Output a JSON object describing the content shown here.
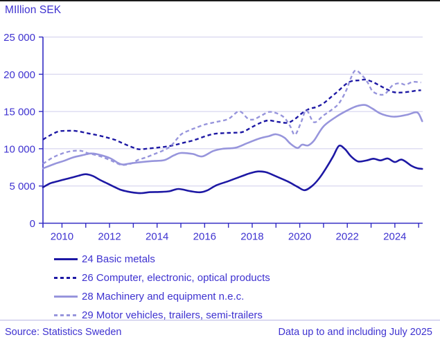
{
  "title": "MIllion SEK",
  "footer": {
    "source": "Source: Statistics Sweden",
    "note": "Data up to and including July 2025"
  },
  "colors": {
    "dark_line": "#1d18a4",
    "light_line": "#9795dc",
    "grid": "#cfcdec",
    "axis": "#322bc4",
    "text": "#3e32d0",
    "top_border": "#1a1a1a",
    "separator": "#b9b7e4"
  },
  "chart_data": {
    "type": "line",
    "title": "MIllion SEK",
    "ylabel": "",
    "xlabel": "",
    "grid": "horizontal",
    "legend_position": "bottom-left",
    "x_domain": [
      2009.2,
      2025.17
    ],
    "ylim": [
      0,
      25000
    ],
    "y_ticks": [
      {
        "v": 0,
        "label": "0"
      },
      {
        "v": 5000,
        "label": "5 000"
      },
      {
        "v": 10000,
        "label": "10 000"
      },
      {
        "v": 15000,
        "label": "15 000"
      },
      {
        "v": 20000,
        "label": "20 000"
      },
      {
        "v": 25000,
        "label": "25 000"
      }
    ],
    "x_ticks": [
      2010,
      2011,
      2012,
      2013,
      2014,
      2015,
      2016,
      2017,
      2018,
      2019,
      2020,
      2021,
      2022,
      2023,
      2024,
      2025
    ],
    "x_tick_labels": [
      {
        "v": 2010,
        "label": "2010"
      },
      {
        "v": 2012,
        "label": "2012"
      },
      {
        "v": 2014,
        "label": "2014"
      },
      {
        "v": 2016,
        "label": "2016"
      },
      {
        "v": 2018,
        "label": "2018"
      },
      {
        "v": 2020,
        "label": "2020"
      },
      {
        "v": 2022,
        "label": "2022"
      },
      {
        "v": 2024,
        "label": "2024"
      }
    ],
    "series": [
      {
        "name": "24 Basic metals",
        "color": "dark",
        "dash": "solid",
        "points": [
          [
            2009.2,
            4830
          ],
          [
            2009.5,
            5350
          ],
          [
            2009.8,
            5620
          ],
          [
            2010.0,
            5800
          ],
          [
            2010.4,
            6120
          ],
          [
            2010.7,
            6380
          ],
          [
            2011.0,
            6580
          ],
          [
            2011.3,
            6340
          ],
          [
            2011.6,
            5810
          ],
          [
            2011.9,
            5350
          ],
          [
            2012.15,
            4950
          ],
          [
            2012.45,
            4510
          ],
          [
            2012.75,
            4260
          ],
          [
            2013.05,
            4100
          ],
          [
            2013.35,
            4040
          ],
          [
            2013.7,
            4170
          ],
          [
            2014.1,
            4200
          ],
          [
            2014.5,
            4280
          ],
          [
            2014.9,
            4600
          ],
          [
            2015.4,
            4300
          ],
          [
            2015.8,
            4150
          ],
          [
            2016.1,
            4400
          ],
          [
            2016.5,
            5100
          ],
          [
            2017.0,
            5650
          ],
          [
            2017.5,
            6250
          ],
          [
            2017.9,
            6700
          ],
          [
            2018.25,
            6950
          ],
          [
            2018.6,
            6830
          ],
          [
            2019.0,
            6300
          ],
          [
            2019.5,
            5600
          ],
          [
            2019.9,
            4900
          ],
          [
            2020.2,
            4430
          ],
          [
            2020.5,
            4950
          ],
          [
            2020.8,
            5950
          ],
          [
            2021.1,
            7350
          ],
          [
            2021.4,
            8950
          ],
          [
            2021.65,
            10390
          ],
          [
            2021.9,
            9950
          ],
          [
            2022.15,
            9000
          ],
          [
            2022.45,
            8300
          ],
          [
            2022.8,
            8420
          ],
          [
            2023.1,
            8660
          ],
          [
            2023.4,
            8440
          ],
          [
            2023.7,
            8690
          ],
          [
            2024.0,
            8220
          ],
          [
            2024.3,
            8530
          ],
          [
            2024.7,
            7700
          ],
          [
            2024.95,
            7380
          ],
          [
            2025.15,
            7300
          ]
        ]
      },
      {
        "name": "26 Computer, electronic, optical products",
        "color": "dark",
        "dash": "dashed",
        "points": [
          [
            2009.2,
            11230
          ],
          [
            2009.5,
            11800
          ],
          [
            2009.85,
            12320
          ],
          [
            2010.2,
            12410
          ],
          [
            2010.6,
            12380
          ],
          [
            2011.05,
            12100
          ],
          [
            2011.45,
            11850
          ],
          [
            2011.85,
            11540
          ],
          [
            2012.25,
            11170
          ],
          [
            2012.6,
            10670
          ],
          [
            2013.0,
            10150
          ],
          [
            2013.25,
            9930
          ],
          [
            2013.6,
            10020
          ],
          [
            2014.0,
            10150
          ],
          [
            2014.4,
            10300
          ],
          [
            2014.8,
            10550
          ],
          [
            2015.1,
            10800
          ],
          [
            2015.5,
            11100
          ],
          [
            2016.0,
            11650
          ],
          [
            2016.4,
            12000
          ],
          [
            2016.8,
            12100
          ],
          [
            2017.2,
            12150
          ],
          [
            2017.6,
            12250
          ],
          [
            2018.0,
            12930
          ],
          [
            2018.4,
            13550
          ],
          [
            2018.7,
            13800
          ],
          [
            2019.1,
            13600
          ],
          [
            2019.5,
            13490
          ],
          [
            2019.8,
            14000
          ],
          [
            2020.1,
            14790
          ],
          [
            2020.4,
            15350
          ],
          [
            2020.7,
            15600
          ],
          [
            2021.0,
            16100
          ],
          [
            2021.3,
            16900
          ],
          [
            2021.6,
            17700
          ],
          [
            2021.95,
            18700
          ],
          [
            2022.2,
            19100
          ],
          [
            2022.5,
            19180
          ],
          [
            2022.75,
            19280
          ],
          [
            2023.05,
            19000
          ],
          [
            2023.35,
            18500
          ],
          [
            2023.65,
            18000
          ],
          [
            2023.95,
            17600
          ],
          [
            2024.25,
            17550
          ],
          [
            2024.6,
            17650
          ],
          [
            2024.9,
            17800
          ],
          [
            2025.1,
            17850
          ]
        ]
      },
      {
        "name": "28 Machinery and equipment n.e.c.",
        "color": "light",
        "dash": "solid",
        "points": [
          [
            2009.2,
            7360
          ],
          [
            2009.7,
            7980
          ],
          [
            2010.1,
            8390
          ],
          [
            2010.45,
            8820
          ],
          [
            2010.9,
            9160
          ],
          [
            2011.25,
            9370
          ],
          [
            2011.65,
            9130
          ],
          [
            2012.05,
            8690
          ],
          [
            2012.35,
            8100
          ],
          [
            2012.55,
            7880
          ],
          [
            2012.9,
            8050
          ],
          [
            2013.3,
            8200
          ],
          [
            2013.8,
            8350
          ],
          [
            2014.3,
            8470
          ],
          [
            2014.7,
            9100
          ],
          [
            2015.0,
            9430
          ],
          [
            2015.5,
            9300
          ],
          [
            2015.9,
            8970
          ],
          [
            2016.35,
            9680
          ],
          [
            2016.75,
            9990
          ],
          [
            2017.3,
            10140
          ],
          [
            2017.8,
            10760
          ],
          [
            2018.3,
            11380
          ],
          [
            2018.7,
            11690
          ],
          [
            2019.0,
            11940
          ],
          [
            2019.35,
            11500
          ],
          [
            2019.6,
            10700
          ],
          [
            2019.9,
            10100
          ],
          [
            2020.1,
            10550
          ],
          [
            2020.35,
            10450
          ],
          [
            2020.6,
            11100
          ],
          [
            2021.0,
            13000
          ],
          [
            2021.55,
            14330
          ],
          [
            2022.0,
            15150
          ],
          [
            2022.4,
            15720
          ],
          [
            2022.75,
            15870
          ],
          [
            2023.05,
            15400
          ],
          [
            2023.35,
            14800
          ],
          [
            2023.65,
            14450
          ],
          [
            2024.0,
            14300
          ],
          [
            2024.5,
            14550
          ],
          [
            2024.85,
            14890
          ],
          [
            2025.0,
            14700
          ],
          [
            2025.15,
            13700
          ]
        ]
      },
      {
        "name": "29 Motor vehicles, trailers, semi-trailers",
        "color": "light",
        "dash": "dashed",
        "points": [
          [
            2009.2,
            7980
          ],
          [
            2009.6,
            8800
          ],
          [
            2010.0,
            9350
          ],
          [
            2010.4,
            9680
          ],
          [
            2010.8,
            9720
          ],
          [
            2011.1,
            9400
          ],
          [
            2011.6,
            9000
          ],
          [
            2012.0,
            8500
          ],
          [
            2012.3,
            8070
          ],
          [
            2012.55,
            7820
          ],
          [
            2012.9,
            8000
          ],
          [
            2013.2,
            8500
          ],
          [
            2013.5,
            8800
          ],
          [
            2013.9,
            9300
          ],
          [
            2014.3,
            9830
          ],
          [
            2014.6,
            10450
          ],
          [
            2015.0,
            11900
          ],
          [
            2015.3,
            12400
          ],
          [
            2015.6,
            12780
          ],
          [
            2016.0,
            13240
          ],
          [
            2016.5,
            13610
          ],
          [
            2017.0,
            14010
          ],
          [
            2017.45,
            15030
          ],
          [
            2017.8,
            14100
          ],
          [
            2018.05,
            13920
          ],
          [
            2018.4,
            14480
          ],
          [
            2018.7,
            14940
          ],
          [
            2019.0,
            14800
          ],
          [
            2019.35,
            14180
          ],
          [
            2019.6,
            13000
          ],
          [
            2019.8,
            11880
          ],
          [
            2020.05,
            13500
          ],
          [
            2020.28,
            15150
          ],
          [
            2020.6,
            13560
          ],
          [
            2021.0,
            14480
          ],
          [
            2021.35,
            15250
          ],
          [
            2021.65,
            16100
          ],
          [
            2021.95,
            17800
          ],
          [
            2022.15,
            19500
          ],
          [
            2022.35,
            20520
          ],
          [
            2022.65,
            19750
          ],
          [
            2022.87,
            18820
          ],
          [
            2023.06,
            17740
          ],
          [
            2023.35,
            17280
          ],
          [
            2023.6,
            17400
          ],
          [
            2023.9,
            18500
          ],
          [
            2024.2,
            18800
          ],
          [
            2024.45,
            18600
          ],
          [
            2024.75,
            18970
          ],
          [
            2025.1,
            18900
          ]
        ]
      }
    ]
  }
}
